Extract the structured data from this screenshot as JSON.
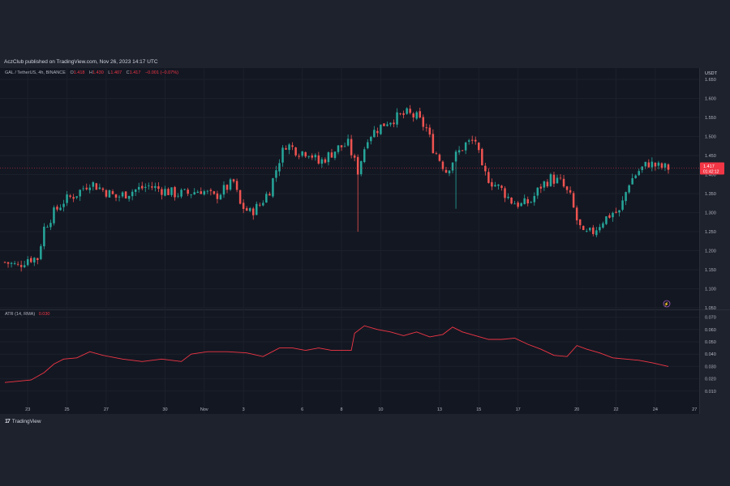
{
  "header": {
    "publisher_line": "AczClub published on TradingView.com, Nov 26, 2023 14:17 UTC"
  },
  "legend": {
    "symbol": "GAL / TetherUS, 4h, BINANCE",
    "open_label": "O",
    "open": "1.418",
    "high_label": "H",
    "high": "1.430",
    "low_label": "L",
    "low": "1.407",
    "close_label": "C",
    "close": "1.417",
    "change": "−0.001 (−0.07%)"
  },
  "indicator": {
    "name": "ATR (14, RMA)",
    "value": "0.030"
  },
  "price_tag": {
    "price": "1.417",
    "countdown": "01:42:12"
  },
  "currency": "USDT",
  "footer": {
    "brand": "TradingView"
  },
  "colors": {
    "up": "#26a69a",
    "down": "#ef5350",
    "atr_line": "#f23645",
    "price_line": "#f23645",
    "background": "#1e222d"
  },
  "chart_data": [
    {
      "type": "candlestick",
      "title": "GAL / TetherUS, 4h, BINANCE",
      "ylim": [
        1.05,
        1.65
      ],
      "y_ticks": [
        "1.650",
        "1.600",
        "1.550",
        "1.500",
        "1.450",
        "1.400",
        "1.350",
        "1.300",
        "1.250",
        "1.200",
        "1.150",
        "1.100",
        "1.050"
      ],
      "x_ticks": [
        "23",
        "25",
        "27",
        "30",
        "Nov",
        "3",
        "6",
        "8",
        "10",
        "13",
        "15",
        "17",
        "20",
        "22",
        "24",
        "27"
      ],
      "last_price": 1.417,
      "close_path": [
        [
          0,
          1.17
        ],
        [
          4,
          1.16
        ],
        [
          7,
          1.18
        ],
        [
          10,
          1.18
        ],
        [
          12,
          1.26
        ],
        [
          15,
          1.3
        ],
        [
          18,
          1.33
        ],
        [
          22,
          1.35
        ],
        [
          26,
          1.38
        ],
        [
          30,
          1.36
        ],
        [
          34,
          1.34
        ],
        [
          37,
          1.35
        ],
        [
          40,
          1.36
        ],
        [
          44,
          1.37
        ],
        [
          48,
          1.36
        ],
        [
          52,
          1.35
        ],
        [
          56,
          1.35
        ],
        [
          60,
          1.36
        ],
        [
          64,
          1.34
        ],
        [
          67,
          1.36
        ],
        [
          70,
          1.38
        ],
        [
          72,
          1.32
        ],
        [
          75,
          1.3
        ],
        [
          78,
          1.32
        ],
        [
          81,
          1.36
        ],
        [
          84,
          1.44
        ],
        [
          86,
          1.48
        ],
        [
          90,
          1.46
        ],
        [
          93,
          1.46
        ],
        [
          96,
          1.43
        ],
        [
          99,
          1.45
        ],
        [
          102,
          1.47
        ],
        [
          105,
          1.48
        ],
        [
          108,
          1.41
        ],
        [
          111,
          1.5
        ],
        [
          114,
          1.52
        ],
        [
          117,
          1.54
        ],
        [
          120,
          1.55
        ],
        [
          123,
          1.56
        ],
        [
          126,
          1.55
        ],
        [
          129,
          1.52
        ],
        [
          131,
          1.47
        ],
        [
          133,
          1.44
        ],
        [
          135,
          1.41
        ],
        [
          138,
          1.45
        ],
        [
          141,
          1.48
        ],
        [
          144,
          1.49
        ],
        [
          146,
          1.41
        ],
        [
          149,
          1.38
        ],
        [
          152,
          1.36
        ],
        [
          155,
          1.33
        ],
        [
          158,
          1.32
        ],
        [
          161,
          1.33
        ],
        [
          164,
          1.37
        ],
        [
          167,
          1.39
        ],
        [
          170,
          1.38
        ],
        [
          173,
          1.34
        ],
        [
          175,
          1.28
        ],
        [
          177,
          1.24
        ],
        [
          180,
          1.25
        ],
        [
          183,
          1.28
        ],
        [
          186,
          1.3
        ],
        [
          188,
          1.3
        ],
        [
          191,
          1.38
        ],
        [
          194,
          1.41
        ],
        [
          197,
          1.43
        ],
        [
          200,
          1.42
        ],
        [
          203,
          1.417
        ]
      ],
      "wick_extremes": [
        {
          "at": 108,
          "low": 1.25
        },
        {
          "at": 138,
          "low": 1.31
        }
      ]
    },
    {
      "type": "line",
      "title": "ATR (14, RMA)",
      "ylim": [
        0.0,
        0.075
      ],
      "y_ticks": [
        "0.070",
        "0.060",
        "0.050",
        "0.040",
        "0.030",
        "0.020",
        "0.010"
      ],
      "series": [
        {
          "name": "ATR (14, RMA)",
          "points": [
            [
              0,
              0.017
            ],
            [
              8,
              0.019
            ],
            [
              12,
              0.025
            ],
            [
              15,
              0.032
            ],
            [
              18,
              0.036
            ],
            [
              22,
              0.037
            ],
            [
              26,
              0.042
            ],
            [
              30,
              0.039
            ],
            [
              36,
              0.036
            ],
            [
              42,
              0.034
            ],
            [
              48,
              0.036
            ],
            [
              54,
              0.034
            ],
            [
              57,
              0.04
            ],
            [
              62,
              0.042
            ],
            [
              68,
              0.042
            ],
            [
              74,
              0.041
            ],
            [
              79,
              0.038
            ],
            [
              84,
              0.045
            ],
            [
              88,
              0.045
            ],
            [
              92,
              0.043
            ],
            [
              96,
              0.045
            ],
            [
              100,
              0.043
            ],
            [
              106,
              0.043
            ],
            [
              107,
              0.057
            ],
            [
              110,
              0.063
            ],
            [
              114,
              0.06
            ],
            [
              118,
              0.058
            ],
            [
              122,
              0.055
            ],
            [
              126,
              0.058
            ],
            [
              130,
              0.054
            ],
            [
              134,
              0.056
            ],
            [
              137,
              0.062
            ],
            [
              140,
              0.058
            ],
            [
              144,
              0.055
            ],
            [
              148,
              0.052
            ],
            [
              152,
              0.052
            ],
            [
              156,
              0.053
            ],
            [
              160,
              0.048
            ],
            [
              164,
              0.044
            ],
            [
              168,
              0.039
            ],
            [
              172,
              0.038
            ],
            [
              175,
              0.047
            ],
            [
              178,
              0.044
            ],
            [
              182,
              0.041
            ],
            [
              186,
              0.037
            ],
            [
              190,
              0.036
            ],
            [
              194,
              0.035
            ],
            [
              198,
              0.033
            ],
            [
              203,
              0.03
            ]
          ]
        }
      ]
    }
  ]
}
